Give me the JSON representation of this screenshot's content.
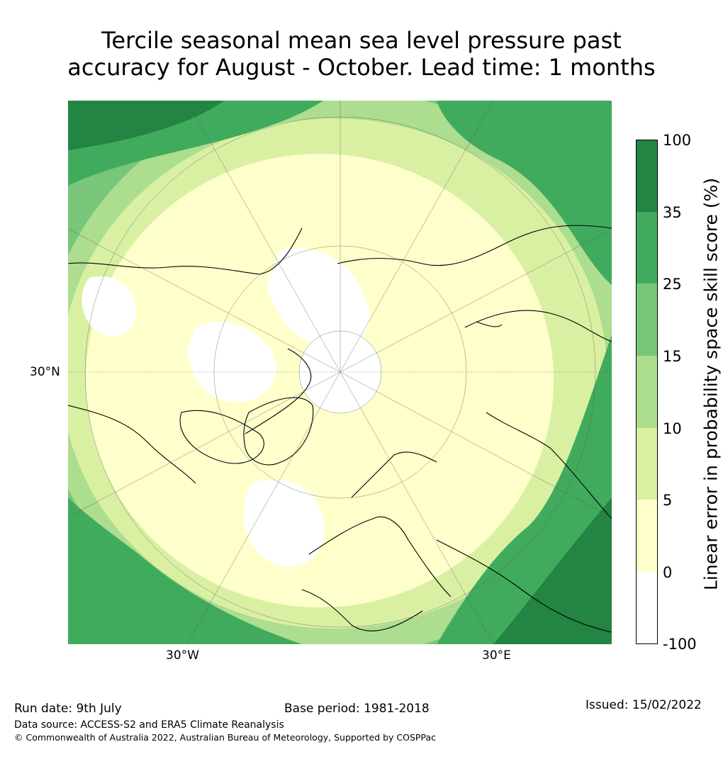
{
  "title": {
    "line1": "Tercile seasonal mean sea level pressure past",
    "line2": "accuracy for August - October. Lead time: 1 months"
  },
  "map": {
    "labels": {
      "lat_30n": "30°N",
      "lon_30w": "30°W",
      "lon_30e": "30°E"
    },
    "projection": "north-polar-stereographic"
  },
  "colorbar": {
    "title": "Linear error in probability space skill score (%)",
    "ticks": [
      "100",
      "35",
      "25",
      "15",
      "10",
      "5",
      "0",
      "-100"
    ],
    "bins": [
      {
        "range": "-100 to 0",
        "color": "#ffffff"
      },
      {
        "range": "0 to 5",
        "color": "#ffffcc"
      },
      {
        "range": "5 to 10",
        "color": "#d9f0a3"
      },
      {
        "range": "10 to 15",
        "color": "#addd8e"
      },
      {
        "range": "15 to 25",
        "color": "#78c679"
      },
      {
        "range": "25 to 35",
        "color": "#41ab5d"
      },
      {
        "range": "35 to 100",
        "color": "#238443"
      }
    ]
  },
  "footer": {
    "run_date": "Run date: 9th July",
    "base_period": "Base period: 1981-2018",
    "issued": "Issued: 15/02/2022",
    "data_source": "Data source: ACCESS-S2 and ERA5 Climate Reanalysis",
    "copyright": "© Commonwealth of Australia 2022, Australian Bureau of Meteorology, Supported by COSPPac"
  }
}
